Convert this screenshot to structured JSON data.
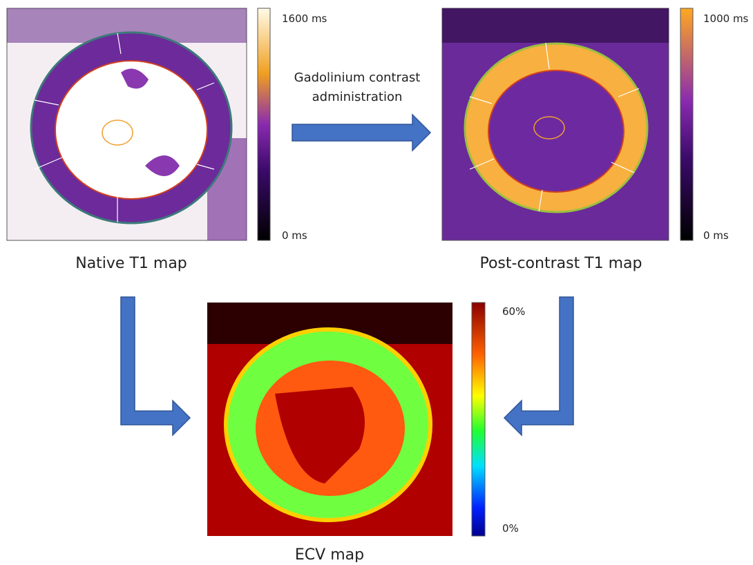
{
  "panels": [
    {
      "caption": "Native T1 map",
      "scale_max": "1600 ms",
      "scale_min": "0 ms"
    },
    {
      "caption": "Post-contrast T1 map",
      "scale_max": "1000 ms",
      "scale_min": "0 ms"
    },
    {
      "caption": "ECV map",
      "scale_max": "60%",
      "scale_min": "0%"
    }
  ],
  "arrow_label": [
    "Gadolinium contrast",
    "administration"
  ]
}
